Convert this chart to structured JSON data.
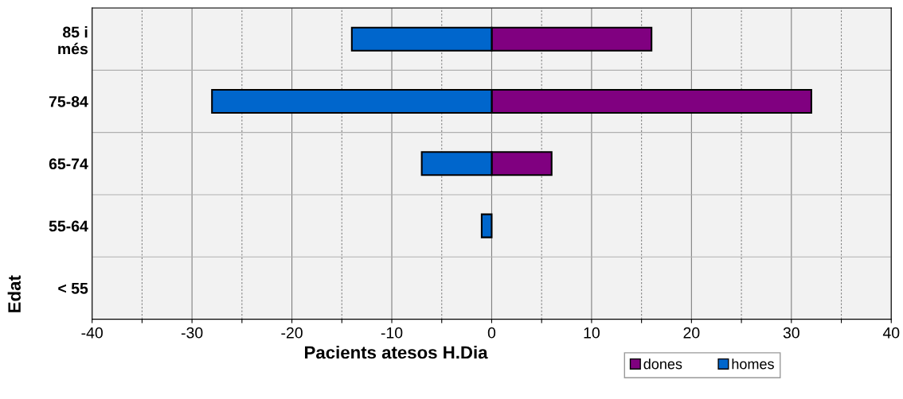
{
  "chart_data": {
    "type": "bar",
    "orientation": "horizontal",
    "stacked": true,
    "categories": [
      "85 i\nmés",
      "75-84",
      "65-74",
      "55-64",
      "< 55"
    ],
    "series": [
      {
        "name": "dones",
        "color": "#800080",
        "values": [
          16,
          32,
          6,
          0,
          0
        ]
      },
      {
        "name": "homes",
        "color": "#0066cc",
        "values": [
          -14,
          -28,
          -7,
          -1,
          0
        ]
      }
    ],
    "xlabel": "Pacients atesos H.Dia",
    "ylabel": "Edat",
    "xlim": [
      -40,
      40
    ],
    "xticks": [
      -40,
      {
        "value": -35,
        "label": null
      },
      -30,
      {
        "value": -25,
        "label": null
      },
      -20,
      {
        "value": -15,
        "label": null
      },
      -10,
      {
        "value": -5,
        "label": null
      },
      0,
      {
        "value": 5,
        "label": null
      },
      10,
      {
        "value": 15,
        "label": null
      },
      20,
      {
        "value": 25,
        "label": null
      },
      30,
      {
        "value": 35,
        "label": null
      },
      40
    ],
    "grid": true,
    "legend": "bottom right"
  }
}
